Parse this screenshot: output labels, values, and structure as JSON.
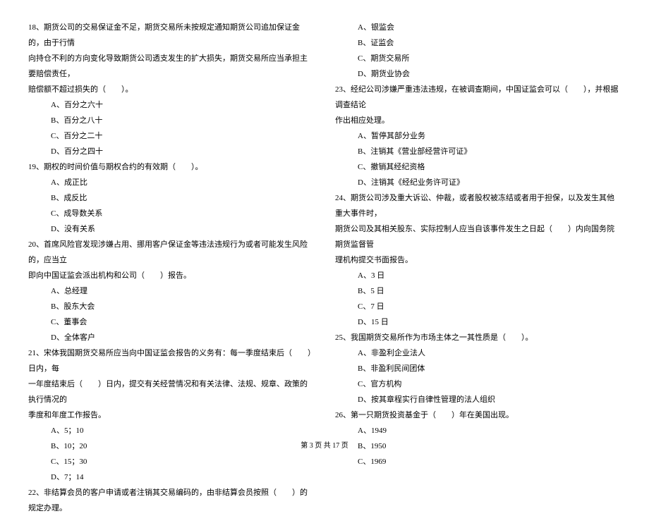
{
  "font_family": "SimSun",
  "font_size_pt": 11,
  "text_color": "#000000",
  "background_color": "#ffffff",
  "line_height": 2.0,
  "left_column": {
    "q18": {
      "line1": "18、期货公司的交易保证金不足，期货交易所未按规定通知期货公司追加保证金的，由于行情",
      "line2": "向持仓不利的方向变化导致期货公司透支发生的扩大损失，期货交易所应当承担主要赔偿责任，",
      "line3": "赔偿额不超过损失的（　　）。",
      "a": "A、百分之六十",
      "b": "B、百分之八十",
      "c": "C、百分之二十",
      "d": "D、百分之四十"
    },
    "q19": {
      "text": "19、期权的时间价值与期权合约的有效期（　　）。",
      "a": "A、成正比",
      "b": "B、成反比",
      "c": "C、成导数关系",
      "d": "D、没有关系"
    },
    "q20": {
      "line1": "20、首席风险官发现涉嫌占用、挪用客户保证金等违法违规行为或者可能发生风险的，应当立",
      "line2": "即向中国证监会派出机构和公司（　　）报告。",
      "a": "A、总经理",
      "b": "B、股东大会",
      "c": "C、董事会",
      "d": "D、全体客户"
    },
    "q21": {
      "line1": "21、宋体我国期货交易所应当向中国证监会报告的义务有：每一季度结束后（　　）日内，每",
      "line2": "一年度结束后（　　）日内，提交有关经营情况和有关法律、法规、规章、政策的执行情况的",
      "line3": "季度和年度工作报告。",
      "a": "A、5；10",
      "b": "B、10；20",
      "c": "C、15；30",
      "d": "D、7；14"
    },
    "q22": {
      "text": "22、非结算会员的客户申请或者注销其交易编码的，由非结算会员按照（　　）的规定办理。"
    }
  },
  "right_column": {
    "q22_options": {
      "a": "A、银监会",
      "b": "B、证监会",
      "c": "C、期货交易所",
      "d": "D、期货业协会"
    },
    "q23": {
      "line1": "23、经纪公司涉嫌严重违法违规，在被调查期间，中国证监会可以（　　），并根据调查结论",
      "line2": "作出相应处理。",
      "a": "A、暂停其部分业务",
      "b": "B、注销其《营业部经营许可证》",
      "c": "C、撤销其经纪资格",
      "d": "D、注销其《经纪业务许可证》"
    },
    "q24": {
      "line1": "24、期货公司涉及重大诉讼、仲裁，或者股权被冻结或者用于担保，以及发生其他重大事件时，",
      "line2": "期货公司及其相关股东、实际控制人应当自该事件发生之日起（　　）内向国务院期货监督管",
      "line3": "理机构提交书面报告。",
      "a": "A、3 日",
      "b": "B、5 日",
      "c": "C、7 日",
      "d": "D、15 日"
    },
    "q25": {
      "text": "25、我国期货交易所作为市场主体之一其性质是（　　）。",
      "a": "A、非盈利企业法人",
      "b": "B、非盈利民间团体",
      "c": "C、官方机构",
      "d": "D、按其章程实行自律性管理的法人组织"
    },
    "q26": {
      "text": "26、第一只期货投资基金于（　　）年在美国出现。",
      "a": "A、1949",
      "b": "B、1950",
      "c": "C、1969"
    }
  },
  "footer": "第 3 页 共 17 页"
}
